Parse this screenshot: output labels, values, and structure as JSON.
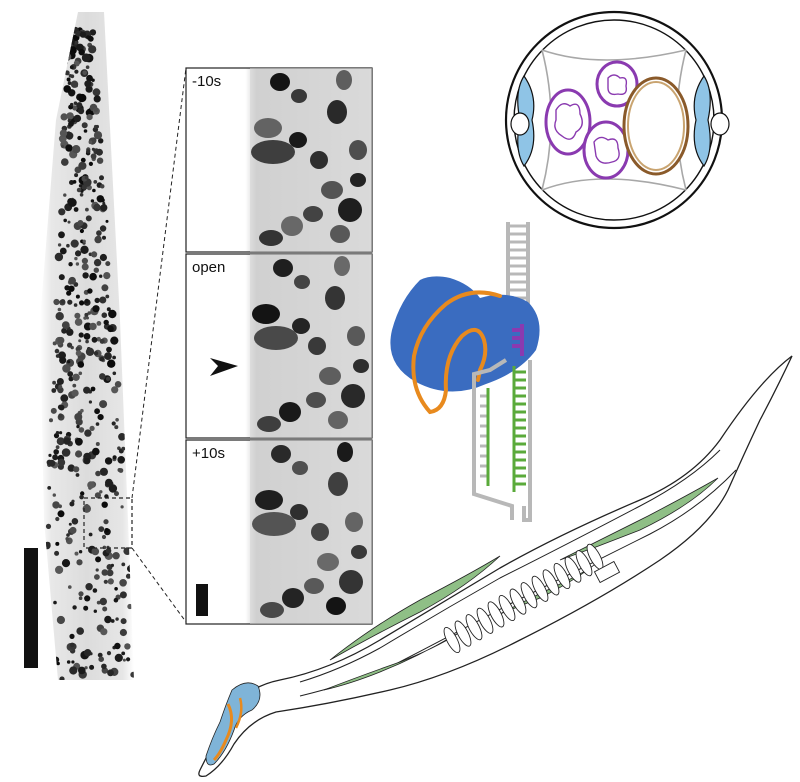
{
  "figure": {
    "inset_panels": [
      {
        "label": "-10s"
      },
      {
        "label": "open"
      },
      {
        "label": "+10s"
      }
    ],
    "colors": {
      "nuclei": "#1a1a1a",
      "tissue_gray": "#d8d8d8",
      "protein_blue": "#3a6cc0",
      "linker_orange": "#e88a1e",
      "dna_green": "#5aaa3a",
      "dna_purple": "#8a3ab0",
      "dna_gray": "#b8b8b8",
      "muscle_green": "#8fbf86",
      "pharynx_blue": "#7fb4d8",
      "ring_brown": "#8a5a2a"
    },
    "icons": [
      "scale-bar",
      "arrowhead-marker",
      "cross-section-diagram",
      "protein-dna-diagram",
      "worm-anatomy-diagram"
    ]
  }
}
